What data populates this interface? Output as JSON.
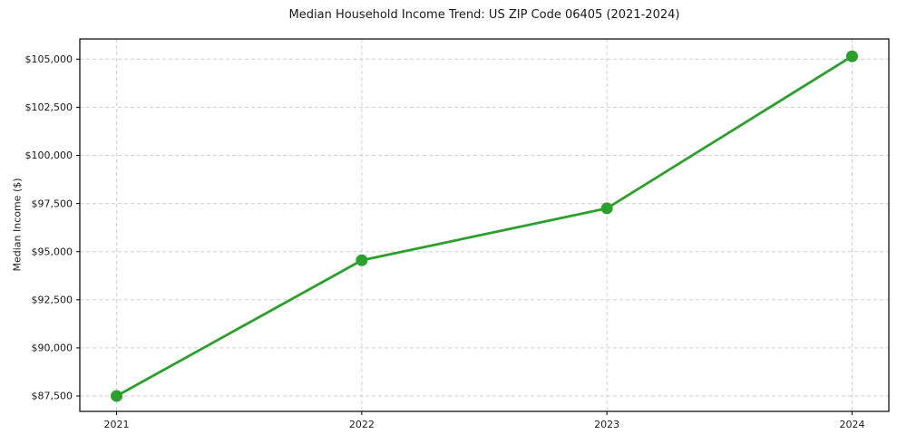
{
  "chart_data": {
    "type": "line",
    "title": "Median Household Income Trend: US ZIP Code 06405 (2021-2024)",
    "ylabel": "Median Income ($)",
    "xlabel": "",
    "x": [
      2021,
      2022,
      2023,
      2024
    ],
    "x_tick_labels": [
      "2021",
      "2022",
      "2023",
      "2024"
    ],
    "series": [
      {
        "name": "Median Household Income",
        "color": "#2ca02c",
        "values": [
          87500,
          94550,
          97250,
          105150
        ]
      }
    ],
    "y_ticks": [
      87500,
      90000,
      92500,
      95000,
      97500,
      100000,
      102500,
      105000
    ],
    "y_tick_labels": [
      "$87,500",
      "$90,000",
      "$92,500",
      "$95,000",
      "$97,500",
      "$100,000",
      "$102,500",
      "$105,000"
    ],
    "xlim": [
      2020.85,
      2024.15
    ],
    "ylim": [
      86700,
      106050
    ],
    "grid": true,
    "legend": "none",
    "style": {
      "grid_color": "#cfcfcf",
      "grid_dash": "4 3",
      "axis_color": "#000000",
      "background": "#ffffff",
      "line_width": 2.8,
      "marker_radius": 6.5,
      "tick_length": 4
    }
  }
}
